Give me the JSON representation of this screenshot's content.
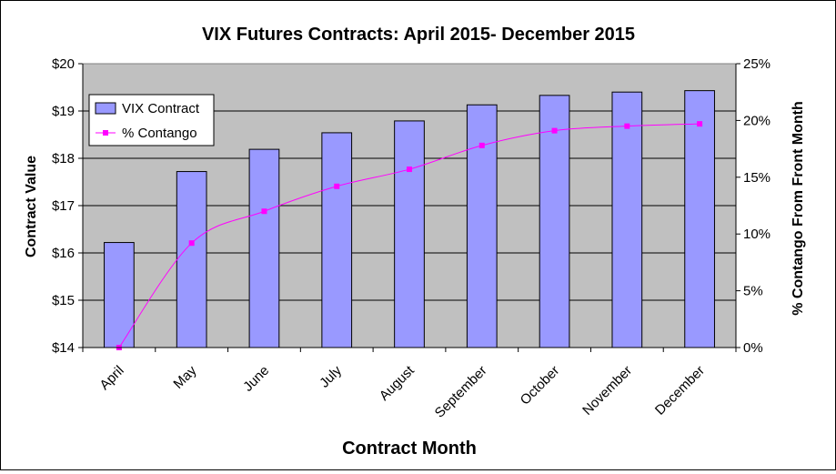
{
  "chart_data": {
    "type": "bar",
    "title": "VIX Futures Contracts: April 2015- December 2015",
    "xlabel": "Contract Month",
    "ylabel": "Contract Value",
    "y2label": "% Contango From Front Month",
    "categories": [
      "April",
      "May",
      "June",
      "July",
      "August",
      "September",
      "October",
      "November",
      "December"
    ],
    "ylim": [
      14,
      20
    ],
    "yticks": [
      "$14",
      "$15",
      "$16",
      "$17",
      "$18",
      "$19",
      "$20"
    ],
    "y2lim": [
      0,
      25
    ],
    "y2ticks": [
      "0%",
      "5%",
      "10%",
      "15%",
      "20%",
      "25%"
    ],
    "grid": true,
    "legend_position": "top-left",
    "series": [
      {
        "name": "VIX Contract",
        "type": "bar",
        "axis": "left",
        "color": "#9999ff",
        "values": [
          16.22,
          17.72,
          18.19,
          18.54,
          18.79,
          19.13,
          19.33,
          19.4,
          19.43
        ]
      },
      {
        "name": "% Contango",
        "type": "line",
        "axis": "right",
        "color": "#ff00ff",
        "values": [
          0.0,
          9.2,
          12.0,
          14.2,
          15.7,
          17.8,
          19.1,
          19.5,
          19.7
        ]
      }
    ],
    "plot_background": "#c0c0c0"
  }
}
